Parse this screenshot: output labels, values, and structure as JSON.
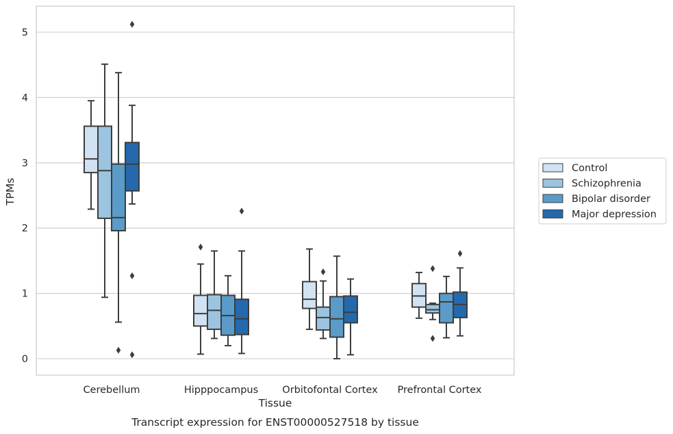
{
  "chart_data": {
    "type": "box",
    "caption": "Transcript expression for ENST00000527518 by tissue",
    "xlabel": "Tissue",
    "ylabel": "TPMs",
    "ylim": [
      -0.25,
      5.4
    ],
    "yticks": [
      0,
      1,
      2,
      3,
      4,
      5
    ],
    "grid": "horizontal",
    "legend_position": "right",
    "categories": [
      "Cerebellum",
      "Hipppocampus",
      "Orbitofontal Cortex",
      "Prefrontal Cortex"
    ],
    "series": [
      {
        "name": "Control",
        "color": "#d1e2f2",
        "boxes": [
          {
            "whisker_low": 2.29,
            "q1": 2.85,
            "median": 3.06,
            "q3": 3.56,
            "whisker_high": 3.95,
            "outliers": []
          },
          {
            "whisker_low": 0.07,
            "q1": 0.5,
            "median": 0.69,
            "q3": 0.97,
            "whisker_high": 1.45,
            "outliers": [
              1.71
            ]
          },
          {
            "whisker_low": 0.45,
            "q1": 0.77,
            "median": 0.91,
            "q3": 1.18,
            "whisker_high": 1.68,
            "outliers": []
          },
          {
            "whisker_low": 0.62,
            "q1": 0.79,
            "median": 0.96,
            "q3": 1.15,
            "whisker_high": 1.32,
            "outliers": []
          }
        ]
      },
      {
        "name": "Schizophrenia",
        "color": "#9cc4e0",
        "boxes": [
          {
            "whisker_low": 0.94,
            "q1": 2.15,
            "median": 2.88,
            "q3": 3.56,
            "whisker_high": 4.51,
            "outliers": []
          },
          {
            "whisker_low": 0.31,
            "q1": 0.45,
            "median": 0.74,
            "q3": 0.98,
            "whisker_high": 1.65,
            "outliers": []
          },
          {
            "whisker_low": 0.31,
            "q1": 0.44,
            "median": 0.63,
            "q3": 0.79,
            "whisker_high": 1.19,
            "outliers": [
              1.33
            ]
          },
          {
            "whisker_low": 0.6,
            "q1": 0.7,
            "median": 0.75,
            "q3": 0.83,
            "whisker_high": 0.85,
            "outliers": [
              1.38,
              0.31
            ]
          }
        ]
      },
      {
        "name": "Bipolar disorder",
        "color": "#5a9bc9",
        "boxes": [
          {
            "whisker_low": 0.56,
            "q1": 1.96,
            "median": 2.16,
            "q3": 2.98,
            "whisker_high": 4.38,
            "outliers": [
              0.13
            ]
          },
          {
            "whisker_low": 0.2,
            "q1": 0.36,
            "median": 0.66,
            "q3": 0.97,
            "whisker_high": 1.27,
            "outliers": []
          },
          {
            "whisker_low": 0.0,
            "q1": 0.33,
            "median": 0.61,
            "q3": 0.95,
            "whisker_high": 1.57,
            "outliers": []
          },
          {
            "whisker_low": 0.32,
            "q1": 0.55,
            "median": 0.87,
            "q3": 1.0,
            "whisker_high": 1.26,
            "outliers": []
          }
        ]
      },
      {
        "name": "Major depression",
        "color": "#2469ac",
        "boxes": [
          {
            "whisker_low": 2.37,
            "q1": 2.57,
            "median": 2.98,
            "q3": 3.31,
            "whisker_high": 3.88,
            "outliers": [
              5.12,
              1.27,
              0.06
            ]
          },
          {
            "whisker_low": 0.08,
            "q1": 0.37,
            "median": 0.61,
            "q3": 0.91,
            "whisker_high": 1.65,
            "outliers": [
              2.26
            ]
          },
          {
            "whisker_low": 0.06,
            "q1": 0.55,
            "median": 0.71,
            "q3": 0.96,
            "whisker_high": 1.22,
            "outliers": []
          },
          {
            "whisker_low": 0.35,
            "q1": 0.63,
            "median": 0.83,
            "q3": 1.02,
            "whisker_high": 1.39,
            "outliers": [
              1.61
            ]
          }
        ]
      }
    ]
  }
}
